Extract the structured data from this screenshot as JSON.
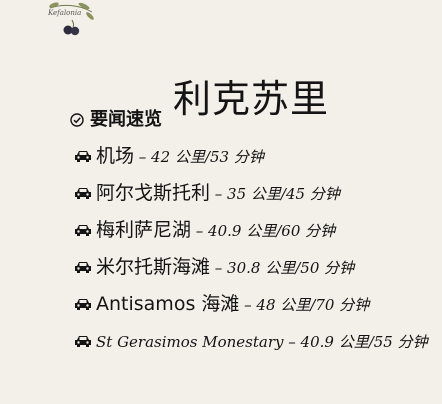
{
  "logo": {
    "icon": "olive-branch-logo",
    "text": "Kefalonia"
  },
  "page_title": "利克苏里",
  "highlights": {
    "heading": "要闻速览",
    "icon": "check-circle-icon"
  },
  "places": [
    {
      "icon": "car-icon",
      "name": "机场",
      "route": " – 42 公里/53 分钟"
    },
    {
      "icon": "car-icon",
      "name": "阿尔戈斯托利",
      "route": " – 35 公里/45 分钟"
    },
    {
      "icon": "car-icon",
      "name": "梅利萨尼湖",
      "route": " – 40.9 公里/60 分钟"
    },
    {
      "icon": "car-icon",
      "name": "米尔托斯海滩",
      "route": " – 30.8 公里/50 分钟"
    },
    {
      "icon": "car-icon",
      "name": "Antisamos 海滩",
      "route": " – 48 公里/70 分钟"
    },
    {
      "icon": "car-icon",
      "name": "St Gerasimos Monestary",
      "route": " – 40.9 公里/55 分钟"
    }
  ]
}
